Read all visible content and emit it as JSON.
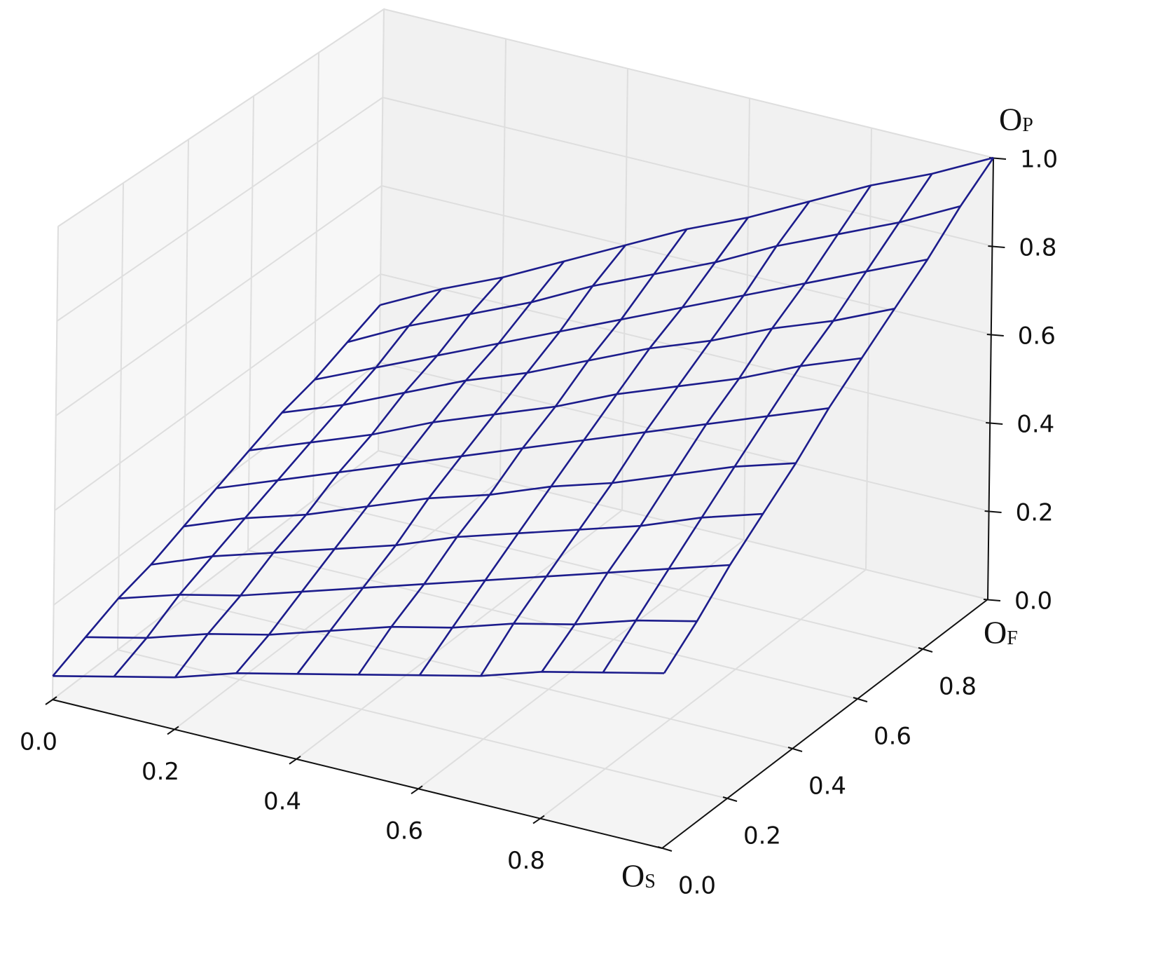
{
  "chart_data": {
    "type": "wireframe",
    "xlabel": "OS",
    "ylabel": "OF",
    "zlabel": "OP",
    "color": "#1c1c8c",
    "grid": true,
    "xlim": [
      0,
      1
    ],
    "ylim": [
      0,
      1
    ],
    "zlim": [
      0,
      1
    ],
    "xticks": [
      {
        "value": 0,
        "label": "0.0"
      },
      0.2,
      0.4,
      0.6,
      0.8
    ],
    "yticks": [
      {
        "value": 0,
        "label": "0.0"
      },
      0.2,
      0.4,
      0.6,
      0.8
    ],
    "zticks": [
      {
        "value": 0,
        "label": "0.0"
      },
      0.2,
      0.4,
      0.6,
      0.8,
      {
        "value": 1,
        "label": "1.0"
      }
    ],
    "x": [
      0,
      0.1,
      0.2,
      0.3,
      0.4,
      0.5,
      0.6,
      0.7,
      0.8,
      0.9,
      1
    ],
    "y": [
      0,
      0.1,
      0.2,
      0.3,
      0.4,
      0.5,
      0.6,
      0.7,
      0.8,
      0.9,
      1
    ],
    "z": [
      [
        0.05,
        0.08,
        0.11,
        0.15,
        0.18,
        0.21,
        0.24,
        0.27,
        0.31,
        0.34,
        0.37
      ],
      [
        0.08,
        0.11,
        0.15,
        0.18,
        0.22,
        0.26,
        0.29,
        0.33,
        0.36,
        0.4,
        0.43
      ],
      [
        0.11,
        0.15,
        0.18,
        0.22,
        0.26,
        0.3,
        0.34,
        0.38,
        0.42,
        0.46,
        0.5
      ],
      [
        0.13,
        0.18,
        0.22,
        0.26,
        0.3,
        0.35,
        0.39,
        0.43,
        0.47,
        0.52,
        0.56
      ],
      [
        0.16,
        0.21,
        0.25,
        0.3,
        0.35,
        0.39,
        0.44,
        0.48,
        0.53,
        0.58,
        0.62
      ],
      [
        0.19,
        0.24,
        0.29,
        0.34,
        0.39,
        0.44,
        0.49,
        0.54,
        0.59,
        0.64,
        0.69
      ],
      [
        0.22,
        0.27,
        0.32,
        0.38,
        0.43,
        0.48,
        0.54,
        0.59,
        0.64,
        0.7,
        0.75
      ],
      [
        0.25,
        0.3,
        0.36,
        0.42,
        0.47,
        0.53,
        0.59,
        0.64,
        0.7,
        0.75,
        0.81
      ],
      [
        0.27,
        0.33,
        0.39,
        0.45,
        0.51,
        0.57,
        0.63,
        0.69,
        0.75,
        0.81,
        0.87
      ],
      [
        0.3,
        0.37,
        0.43,
        0.49,
        0.56,
        0.62,
        0.68,
        0.75,
        0.81,
        0.87,
        0.94
      ],
      [
        0.33,
        0.4,
        0.46,
        0.53,
        0.6,
        0.67,
        0.73,
        0.8,
        0.87,
        0.93,
        1
      ]
    ]
  }
}
